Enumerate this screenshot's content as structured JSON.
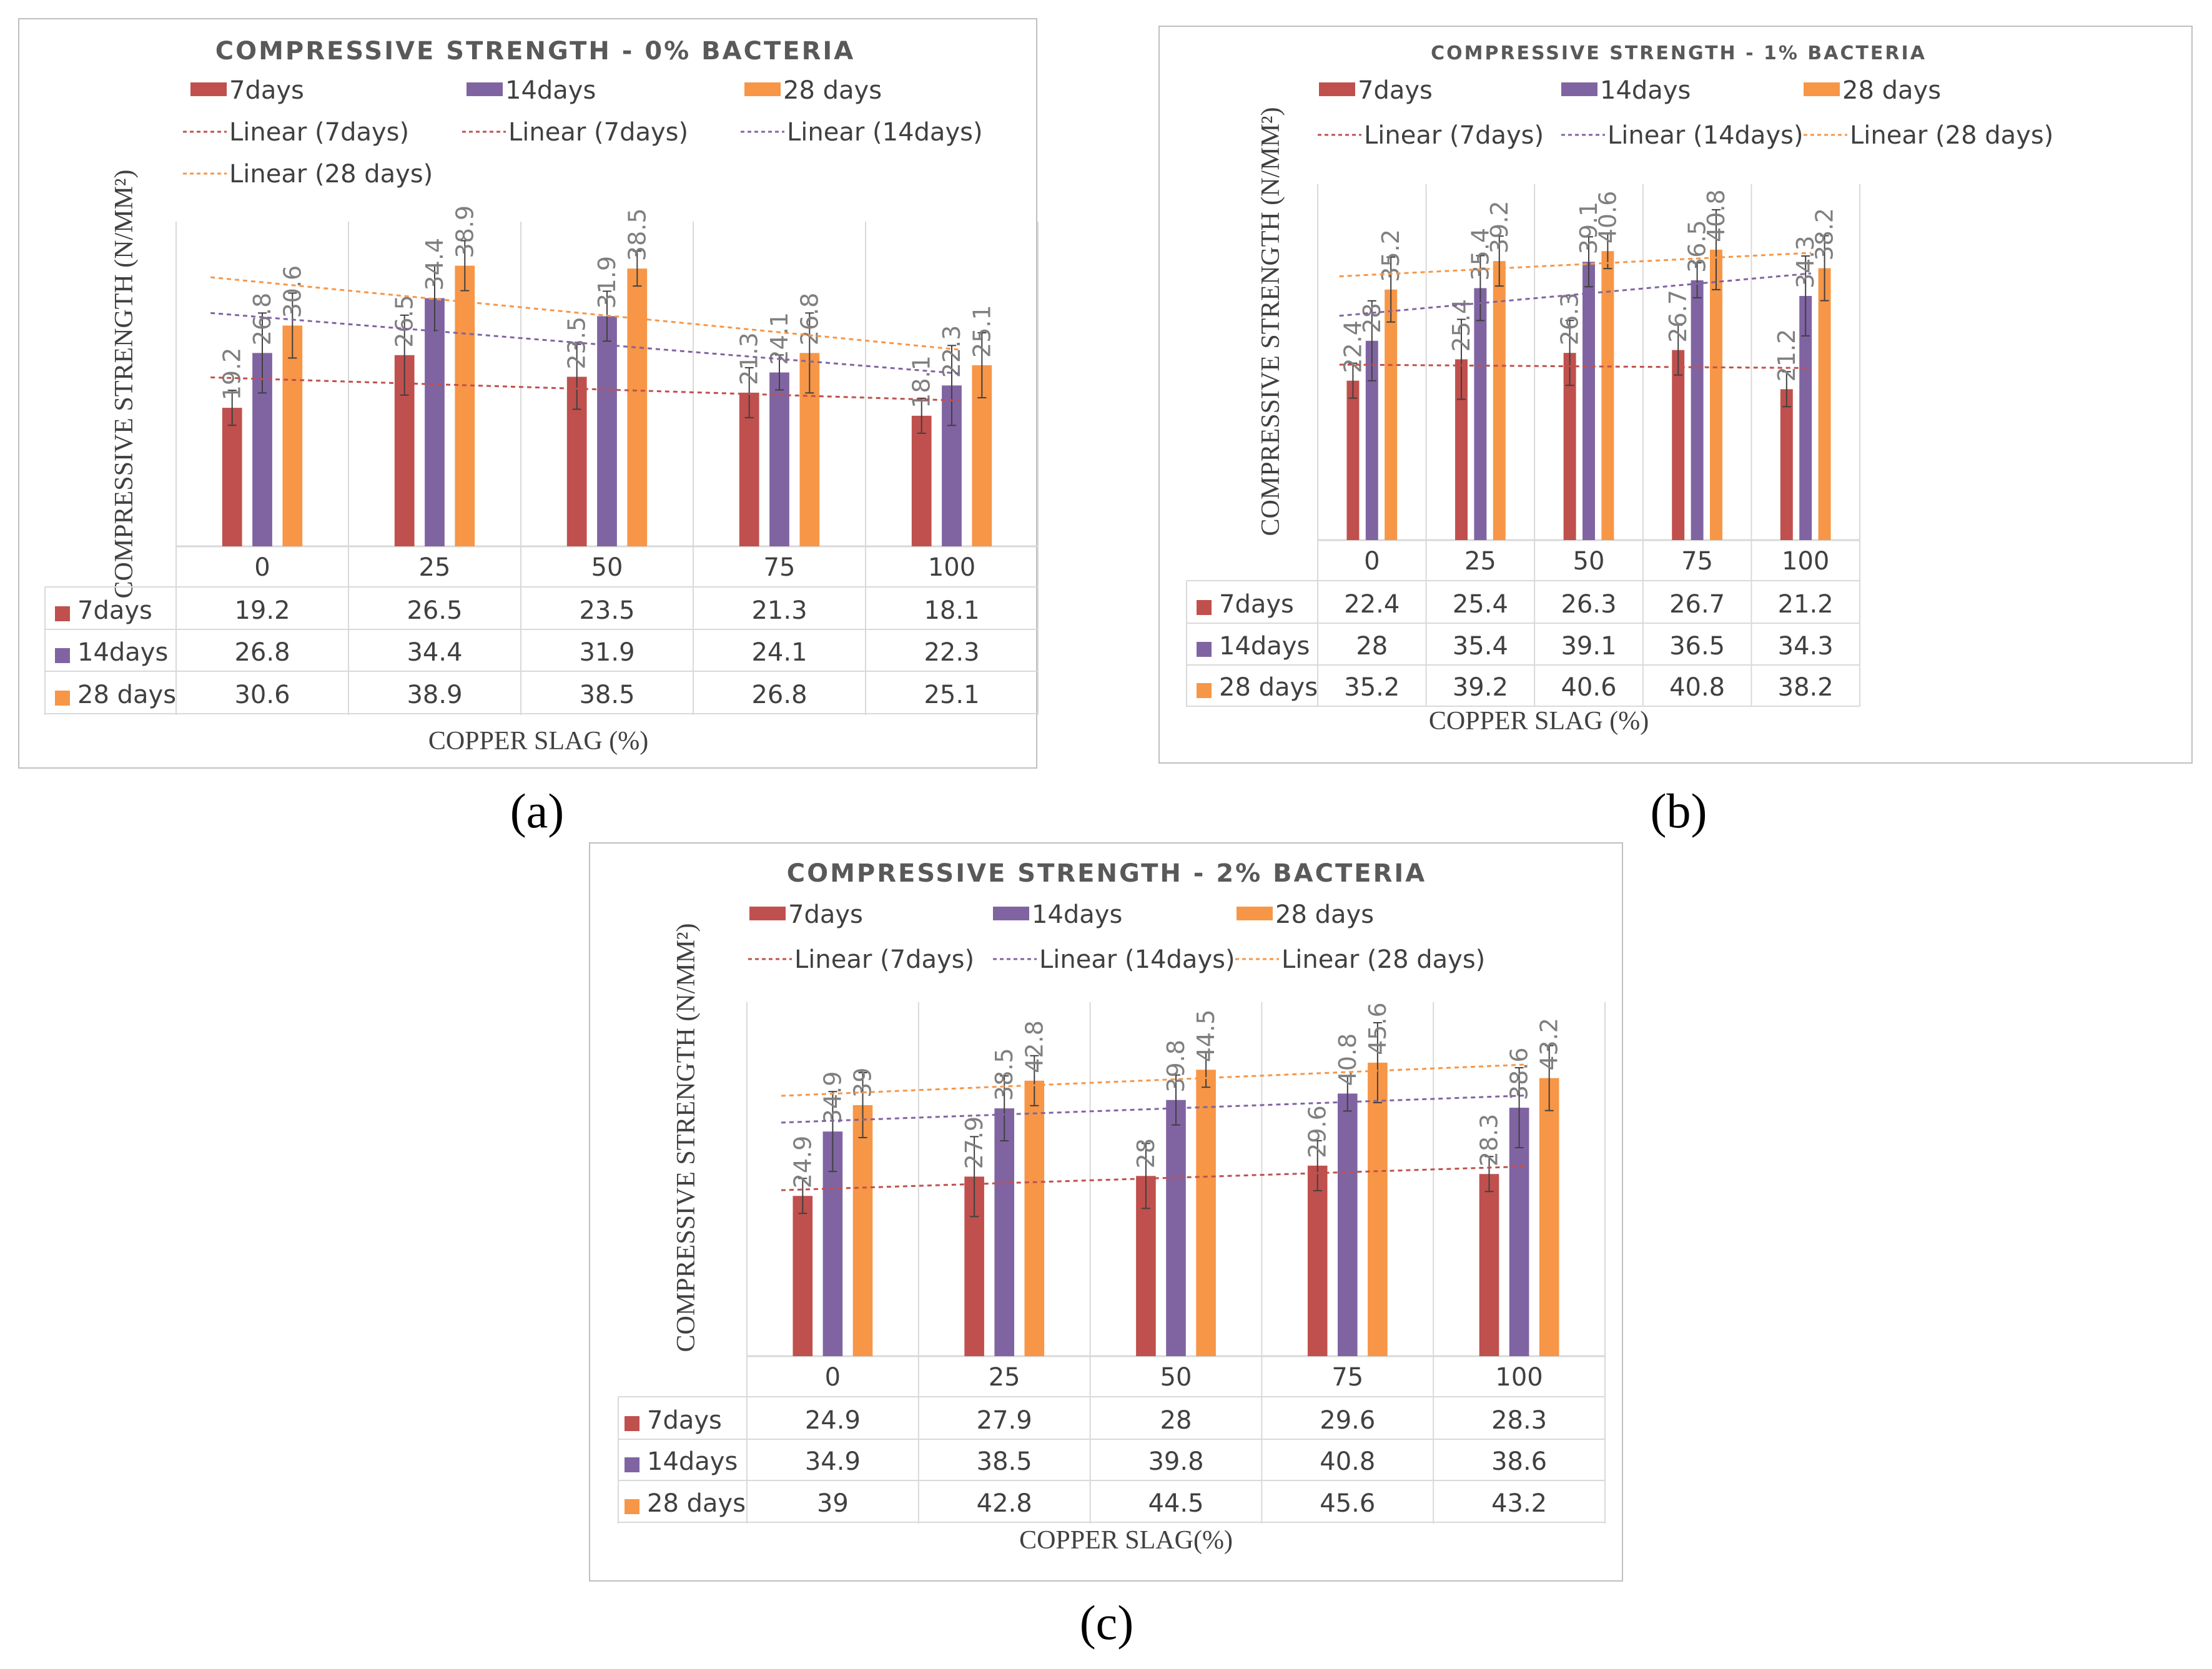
{
  "colors": {
    "d7": "#c0504d",
    "d14": "#8064a2",
    "d28": "#f79646",
    "grid": "#d9d9d9",
    "text": "#404040",
    "border": "#bfbfbf"
  },
  "chart_data": [
    {
      "type": "bar",
      "panel_label": "(a)",
      "title": "COMPRESSIVE STRENGTH - 0% BACTERIA",
      "xlabel": "COPPER SLAG (%)",
      "ylabel": "COMPRESSIVE STRENGTH  (N/MM²)",
      "categories": [
        "0",
        "25",
        "50",
        "75",
        "100"
      ],
      "ylim": [
        0,
        45
      ],
      "series": [
        {
          "name": "7days",
          "values": [
            19.2,
            26.5,
            23.5,
            21.3,
            18.1
          ]
        },
        {
          "name": "14days",
          "values": [
            26.8,
            34.4,
            31.9,
            24.1,
            22.3
          ]
        },
        {
          "name": "28 days",
          "values": [
            30.6,
            38.9,
            38.5,
            26.8,
            25.1
          ]
        }
      ],
      "trendlines": [
        "Linear (7days)",
        "Linear (7days)",
        "Linear (14days)",
        "Linear (28 days)"
      ],
      "data_table": true
    },
    {
      "type": "bar",
      "panel_label": "(b)",
      "title": "COMPRESSIVE STRENGTH - 1% BACTERIA",
      "xlabel": "COPPER SLAG (%)",
      "ylabel": "COMPRESSIVE STRENGTH (N/MM²)",
      "categories": [
        "0",
        "25",
        "50",
        "75",
        "100"
      ],
      "ylim": [
        0,
        50
      ],
      "series": [
        {
          "name": "7days",
          "values": [
            22.4,
            25.4,
            26.3,
            26.7,
            21.2
          ]
        },
        {
          "name": "14days",
          "values": [
            28,
            35.4,
            39.1,
            36.5,
            34.3
          ]
        },
        {
          "name": "28 days",
          "values": [
            35.2,
            39.2,
            40.6,
            40.8,
            38.2
          ]
        }
      ],
      "trendlines": [
        "Linear (7days)",
        "Linear (14days)",
        "Linear (28 days)"
      ],
      "data_table": true
    },
    {
      "type": "bar",
      "panel_label": "(c)",
      "title": "COMPRESSIVE STRENGTH - 2% BACTERIA",
      "xlabel": "COPPER SLAG(%)",
      "ylabel": "COMPRESSIVE STRENGTH (N/MM²)",
      "categories": [
        "0",
        "25",
        "50",
        "75",
        "100"
      ],
      "ylim": [
        0,
        55
      ],
      "series": [
        {
          "name": "7days",
          "values": [
            24.9,
            27.9,
            28,
            29.6,
            28.3
          ]
        },
        {
          "name": "14days",
          "values": [
            34.9,
            38.5,
            39.8,
            40.8,
            38.6
          ]
        },
        {
          "name": "28 days",
          "values": [
            39,
            42.8,
            44.5,
            45.6,
            43.2
          ]
        }
      ],
      "trendlines": [
        "Linear (7days)",
        "Linear (14days)",
        "Linear (28 days)"
      ],
      "data_table": true
    }
  ]
}
